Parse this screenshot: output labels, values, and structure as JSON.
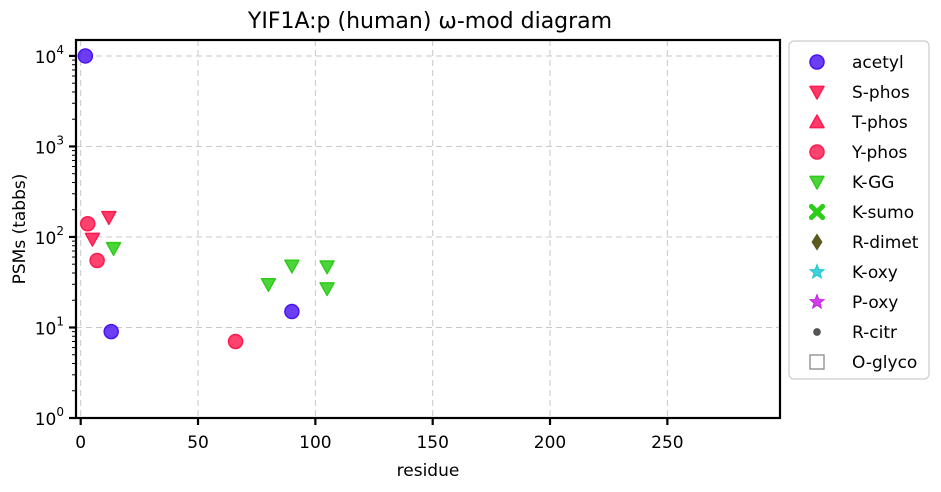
{
  "chart_data": {
    "type": "scatter",
    "title": "YIF1A:p (human) ω-mod diagram",
    "xlabel": "residue",
    "ylabel": "PSMs (tabbs)",
    "xlim": [
      -2,
      298
    ],
    "ylim": [
      1,
      15000
    ],
    "yscale": "log",
    "grid": true,
    "legend_position": "outside-right",
    "x_ticks": [
      {
        "value": 0,
        "label": "0"
      },
      {
        "value": 50,
        "label": "50"
      },
      {
        "value": 100,
        "label": "100"
      },
      {
        "value": 150,
        "label": "150"
      },
      {
        "value": 200,
        "label": "200"
      },
      {
        "value": 250,
        "label": "250"
      }
    ],
    "y_ticks": [
      {
        "value": 1,
        "base": "10",
        "exp": "0"
      },
      {
        "value": 10,
        "base": "10",
        "exp": "1"
      },
      {
        "value": 100,
        "base": "10",
        "exp": "2"
      },
      {
        "value": 1000,
        "base": "10",
        "exp": "3"
      },
      {
        "value": 10000,
        "base": "10",
        "exp": "4"
      }
    ],
    "series": [
      {
        "name": "acetyl",
        "marker": "circle",
        "color": "#4a14f0",
        "points": [
          [
            2,
            10000
          ],
          [
            13,
            9
          ],
          [
            90,
            15
          ]
        ]
      },
      {
        "name": "S-phos",
        "marker": "triangle-down",
        "color": "#ff1a4f",
        "points": [
          [
            5,
            95
          ],
          [
            12,
            165
          ]
        ]
      },
      {
        "name": "T-phos",
        "marker": "triangle-up",
        "color": "#ff1a4f",
        "points": []
      },
      {
        "name": "Y-phos",
        "marker": "circle",
        "color": "#ff1a4f",
        "points": [
          [
            3,
            140
          ],
          [
            7,
            55
          ],
          [
            66,
            7
          ]
        ]
      },
      {
        "name": "K-GG",
        "marker": "triangle-down",
        "color": "#2ecc1a",
        "points": [
          [
            14,
            75
          ],
          [
            80,
            30
          ],
          [
            90,
            48
          ],
          [
            105,
            47
          ],
          [
            105,
            27
          ]
        ]
      },
      {
        "name": "K-sumo",
        "marker": "x",
        "color": "#2ecc1a",
        "points": []
      },
      {
        "name": "R-dimet",
        "marker": "diamond",
        "color": "#5a5a1e",
        "points": []
      },
      {
        "name": "K-oxy",
        "marker": "star",
        "color": "#1ec8d2",
        "points": []
      },
      {
        "name": "P-oxy",
        "marker": "star",
        "color": "#c81ee6",
        "points": []
      },
      {
        "name": "R-citr",
        "marker": "small-circle",
        "color": "#555555",
        "points": []
      },
      {
        "name": "O-glyco",
        "marker": "square-open",
        "color": "#888888",
        "points": []
      }
    ]
  }
}
